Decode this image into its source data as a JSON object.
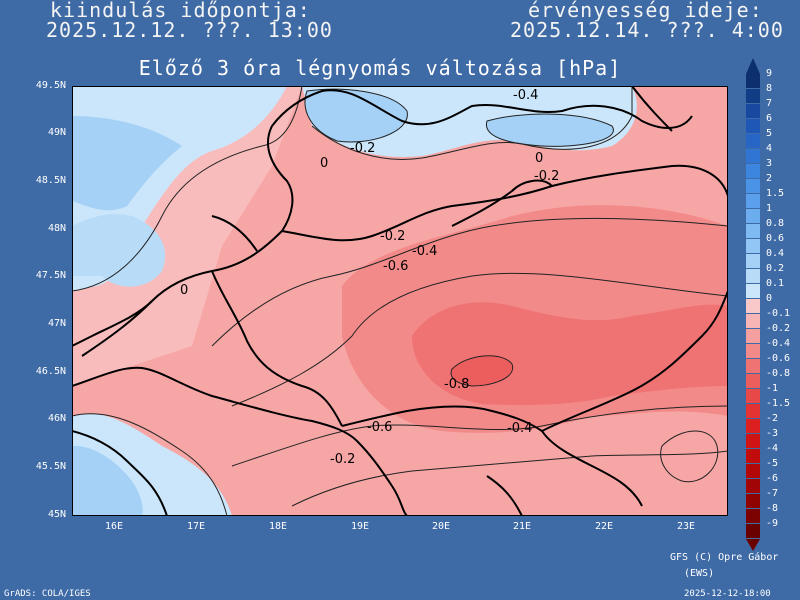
{
  "header": {
    "left_label": "kiindulás időpontja:",
    "left_value": "2025.12.12. ???. 13:00",
    "right_label": "érvényesség ideje:",
    "right_value": "2025.12.14. ???. 4:00"
  },
  "title": "Előző 3 óra légnyomás változása [hPa]",
  "y_ticks": [
    "49.5N",
    "49N",
    "48.5N",
    "48N",
    "47.5N",
    "47N",
    "46.5N",
    "46N",
    "45.5N",
    "45N"
  ],
  "x_ticks": [
    "16E",
    "17E",
    "18E",
    "19E",
    "20E",
    "21E",
    "22E",
    "23E"
  ],
  "contour_labels": [
    "-0.4",
    "-0.2",
    "0",
    "0",
    "-0.2",
    "-0.2",
    "-0.4",
    "-0.6",
    "0",
    "-0.8",
    "-0.6",
    "-0.4",
    "-0.2"
  ],
  "colorbar": {
    "labels": [
      "9",
      "8",
      "7",
      "6",
      "5",
      "4",
      "3",
      "2",
      "1.5",
      "1",
      "0.8",
      "0.6",
      "0.4",
      "0.2",
      "0.1",
      "0",
      "-0.1",
      "-0.2",
      "-0.4",
      "-0.6",
      "-0.8",
      "-1",
      "-1.5",
      "-2",
      "-3",
      "-4",
      "-5",
      "-6",
      "-7",
      "-8",
      "-9"
    ],
    "colors": [
      "#0c2f6e",
      "#113d86",
      "#1849a0",
      "#1e57b5",
      "#2766c4",
      "#3175d2",
      "#3c86df",
      "#4a93e6",
      "#5aa0ec",
      "#6cadf0",
      "#7fbaf3",
      "#92c6f5",
      "#a5d1f7",
      "#b8dcf8",
      "#cbe6fa",
      "#f9c9c9",
      "#f7b5b5",
      "#f5a0a0",
      "#f38a8a",
      "#f07373",
      "#ec5e5e",
      "#e84848",
      "#e33333",
      "#dc2020",
      "#d01313",
      "#c20c0c",
      "#b20808",
      "#a10505",
      "#8f0303",
      "#7c0202",
      "#6a0101"
    ]
  },
  "footer": {
    "credit1": "GFS (C) Opre Gábor",
    "credit2": "(EWS)",
    "grads": "GrADS: COLA/IGES",
    "timestamp": "2025-12-12-18:00"
  }
}
